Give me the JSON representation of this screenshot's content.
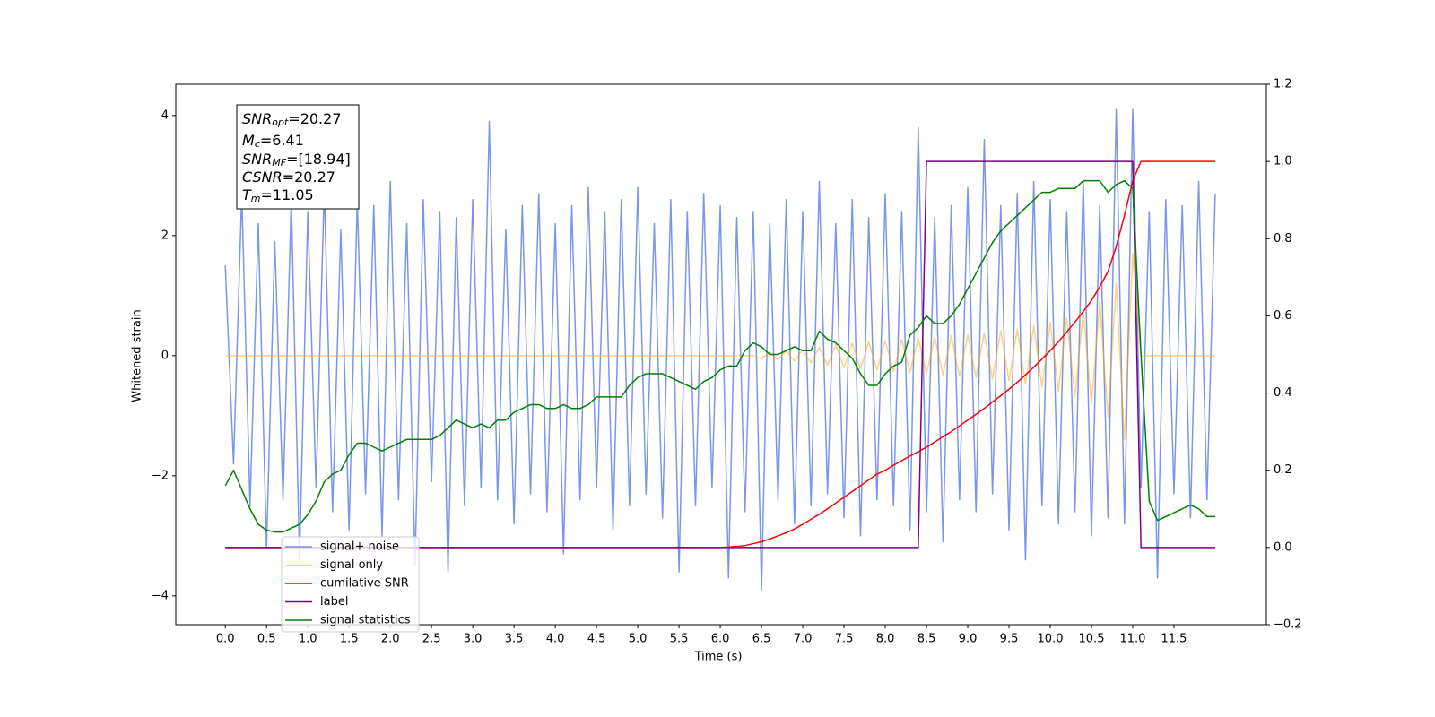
{
  "chart_data": {
    "type": "line",
    "xlabel": "Time (s)",
    "ylabel": "Whitened strain",
    "xlim": [
      -0.6,
      12.62
    ],
    "ylim": [
      -4.48,
      4.52
    ],
    "y2lim": [
      -0.2,
      1.2
    ],
    "xticks": [
      {
        "value": 0,
        "label": "0.0"
      },
      0.5,
      {
        "value": 1,
        "label": "1.0"
      },
      1.5,
      {
        "value": 2,
        "label": "2.0"
      },
      2.5,
      {
        "value": 3,
        "label": "3.0"
      },
      3.5,
      {
        "value": 4,
        "label": "4.0"
      },
      4.5,
      {
        "value": 5,
        "label": "5.0"
      },
      5.5,
      {
        "value": 6,
        "label": "6.0"
      },
      6.5,
      {
        "value": 7,
        "label": "7.0"
      },
      7.5,
      {
        "value": 8,
        "label": "8.0"
      },
      8.5,
      {
        "value": 9,
        "label": "9.0"
      },
      9.5,
      {
        "value": 10,
        "label": "10.0"
      },
      10.5,
      {
        "value": 11,
        "label": "11.0"
      },
      11.5
    ],
    "yticks": [
      {
        "value": -4,
        "label": "−4"
      },
      {
        "value": -2,
        "label": "−2"
      },
      0,
      2,
      4
    ],
    "y2ticks": [
      {
        "value": -0.2,
        "label": "−0.2"
      },
      {
        "value": 0,
        "label": "0.0"
      },
      0.2,
      0.4,
      0.6,
      0.8,
      {
        "value": 1,
        "label": "1.0"
      },
      1.2
    ],
    "legend": "lower left",
    "annotation": [
      {
        "name": "SNR",
        "sub": "opt",
        "text": "=20.27"
      },
      {
        "name": "M",
        "sub": "c",
        "text": "=6.41"
      },
      {
        "name": "SNR",
        "sub": "MF",
        "text": "=[18.94]"
      },
      {
        "name": "CSNR",
        "text": "=20.27"
      },
      {
        "name": "T",
        "sub": "m",
        "text": "=11.05"
      }
    ],
    "x": [
      0,
      0.1,
      0.2,
      0.3,
      0.4,
      0.5,
      0.6,
      0.7,
      0.8,
      0.9,
      1,
      1.1,
      1.2,
      1.3,
      1.4,
      1.5,
      1.6,
      1.7,
      1.8,
      1.9,
      2,
      2.1,
      2.2,
      2.3,
      2.4,
      2.5,
      2.6,
      2.7,
      2.8,
      2.9,
      3,
      3.1,
      3.2,
      3.3,
      3.4,
      3.5,
      3.6,
      3.7,
      3.8,
      3.9,
      4,
      4.1,
      4.2,
      4.3,
      4.4,
      4.5,
      4.6,
      4.7,
      4.8,
      4.9,
      5,
      5.1,
      5.2,
      5.3,
      5.4,
      5.5,
      5.6,
      5.7,
      5.8,
      5.9,
      6,
      6.1,
      6.2,
      6.3,
      6.4,
      6.5,
      6.6,
      6.7,
      6.8,
      6.9,
      7,
      7.1,
      7.2,
      7.3,
      7.4,
      7.5,
      7.6,
      7.7,
      7.8,
      7.9,
      8,
      8.1,
      8.2,
      8.3,
      8.4,
      8.5,
      8.6,
      8.7,
      8.8,
      8.9,
      9,
      9.1,
      9.2,
      9.3,
      9.4,
      9.5,
      9.6,
      9.7,
      9.8,
      9.9,
      10,
      10.1,
      10.2,
      10.3,
      10.4,
      10.5,
      10.6,
      10.7,
      10.8,
      10.9,
      11,
      11.1,
      11.2,
      11.3,
      11.4,
      11.5,
      11.6,
      11.7,
      11.8,
      11.9,
      12
    ],
    "series": [
      {
        "name": "signal+ noise",
        "color": "#4169e1",
        "alpha": 0.7,
        "width": 1.5,
        "axis": "y",
        "values": [
          1.5,
          -1.8,
          2.7,
          -2.5,
          2.2,
          -3.2,
          1.9,
          -2.4,
          2.6,
          -3.4,
          2.4,
          -2.2,
          2.8,
          -2.6,
          2.1,
          -2.9,
          2.6,
          -2.3,
          2.5,
          -3.0,
          2.9,
          -2.4,
          2.2,
          -3.5,
          2.6,
          -2.1,
          2.4,
          -3.6,
          2.3,
          -2.5,
          2.6,
          -2.2,
          3.9,
          -2.4,
          2.1,
          -2.8,
          2.5,
          -2.3,
          2.7,
          -2.6,
          2.2,
          -3.3,
          2.5,
          -2.4,
          2.8,
          -2.2,
          2.4,
          -2.9,
          2.6,
          -2.5,
          2.8,
          -2.3,
          2.2,
          -2.7,
          2.6,
          -3.6,
          2.4,
          -2.5,
          2.7,
          -2.2,
          2.5,
          -3.7,
          2.3,
          -2.6,
          2.4,
          -3.9,
          2.2,
          -2.4,
          2.6,
          -2.8,
          2.4,
          -2.5,
          2.9,
          -2.3,
          2.2,
          -2.7,
          2.6,
          -3.0,
          2.3,
          -2.4,
          2.7,
          -2.5,
          2.4,
          -2.9,
          3.8,
          -2.6,
          2.3,
          -3.1,
          2.5,
          -2.4,
          2.8,
          -2.6,
          3.6,
          -2.3,
          2.5,
          -2.9,
          2.7,
          -3.4,
          2.9,
          -2.5,
          2.6,
          -2.8,
          2.4,
          -2.6,
          2.9,
          -3.0,
          2.5,
          -2.7,
          4.1,
          -2.8,
          4.1,
          -2.2,
          2.4,
          -3.7,
          2.6,
          -2.3,
          2.5,
          -2.7,
          2.9,
          -2.4,
          2.7
        ]
      },
      {
        "name": "signal only",
        "color": "#ffa500",
        "alpha": 0.5,
        "width": 1.5,
        "axis": "y",
        "values": [
          0,
          0,
          0,
          0,
          0,
          0,
          0,
          0,
          0,
          0,
          0,
          0,
          0,
          0,
          0,
          0,
          0,
          0,
          0,
          0,
          0,
          0,
          0,
          0,
          0,
          0,
          0,
          0,
          0,
          0,
          0,
          0,
          0,
          0,
          0,
          0,
          0,
          0,
          0,
          0,
          0,
          0,
          0,
          0,
          0,
          0,
          0,
          0,
          0,
          0,
          0,
          0,
          0,
          0,
          0,
          0,
          0,
          0,
          0,
          0,
          0,
          0,
          0,
          0,
          0,
          -0.05,
          0.06,
          -0.07,
          0.08,
          -0.09,
          0.1,
          -0.12,
          0.14,
          -0.16,
          0.18,
          -0.2,
          0.21,
          -0.22,
          0.23,
          -0.24,
          0.25,
          -0.26,
          0.27,
          -0.28,
          0.29,
          -0.3,
          0.31,
          -0.32,
          0.33,
          -0.34,
          0.35,
          -0.36,
          0.38,
          -0.39,
          0.41,
          -0.42,
          0.44,
          -0.47,
          0.5,
          -0.52,
          0.55,
          -0.59,
          0.63,
          -0.68,
          0.74,
          -0.8,
          0.9,
          -1.02,
          1.2,
          -1.4,
          1.7,
          0,
          0,
          0,
          0,
          0,
          0,
          0,
          0,
          0,
          0
        ]
      },
      {
        "name": "cumilative SNR",
        "color": "#ff0000",
        "alpha": 1,
        "width": 1.5,
        "axis": "y2",
        "values": [
          0,
          0,
          0,
          0,
          0,
          0,
          0,
          0,
          0,
          0,
          0,
          0,
          0,
          0,
          0,
          0,
          0,
          0,
          0,
          0,
          0,
          0,
          0,
          0,
          0,
          0,
          0,
          0,
          0,
          0,
          0,
          0,
          0,
          0,
          0,
          0,
          0,
          0,
          0,
          0,
          0,
          0,
          0,
          0,
          0,
          0,
          0,
          0,
          0,
          0,
          0,
          0,
          0,
          0,
          0,
          0,
          0,
          0,
          0,
          0,
          0,
          0.001,
          0.003,
          0.005,
          0.01,
          0.015,
          0.022,
          0.03,
          0.038,
          0.048,
          0.06,
          0.073,
          0.086,
          0.1,
          0.115,
          0.13,
          0.145,
          0.16,
          0.175,
          0.19,
          0.2,
          0.213,
          0.225,
          0.237,
          0.248,
          0.26,
          0.273,
          0.287,
          0.3,
          0.315,
          0.33,
          0.345,
          0.36,
          0.377,
          0.393,
          0.41,
          0.428,
          0.447,
          0.467,
          0.488,
          0.51,
          0.533,
          0.558,
          0.584,
          0.611,
          0.64,
          0.675,
          0.715,
          0.78,
          0.86,
          0.95,
          1,
          1,
          1,
          1,
          1,
          1,
          1,
          1,
          1,
          1
        ]
      },
      {
        "name": "label",
        "color": "#800080",
        "alpha": 1,
        "width": 1.5,
        "axis": "y2",
        "values": [
          0,
          0,
          0,
          0,
          0,
          0,
          0,
          0,
          0,
          0,
          0,
          0,
          0,
          0,
          0,
          0,
          0,
          0,
          0,
          0,
          0,
          0,
          0,
          0,
          0,
          0,
          0,
          0,
          0,
          0,
          0,
          0,
          0,
          0,
          0,
          0,
          0,
          0,
          0,
          0,
          0,
          0,
          0,
          0,
          0,
          0,
          0,
          0,
          0,
          0,
          0,
          0,
          0,
          0,
          0,
          0,
          0,
          0,
          0,
          0,
          0,
          0,
          0,
          0,
          0,
          0,
          0,
          0,
          0,
          0,
          0,
          0,
          0,
          0,
          0,
          0,
          0,
          0,
          0,
          0,
          0,
          0,
          0,
          0,
          0,
          1,
          1,
          1,
          1,
          1,
          1,
          1,
          1,
          1,
          1,
          1,
          1,
          1,
          1,
          1,
          1,
          1,
          1,
          1,
          1,
          1,
          1,
          1,
          1,
          1,
          1,
          0,
          0,
          0,
          0,
          0,
          0,
          0,
          0,
          0,
          0
        ]
      },
      {
        "name": "signal statistics",
        "color": "#008000",
        "alpha": 1,
        "width": 1.5,
        "axis": "y2",
        "values": [
          0.16,
          0.2,
          0.15,
          0.1,
          0.06,
          0.045,
          0.04,
          0.04,
          0.05,
          0.06,
          0.085,
          0.12,
          0.17,
          0.19,
          0.2,
          0.24,
          0.27,
          0.27,
          0.26,
          0.25,
          0.26,
          0.27,
          0.28,
          0.28,
          0.28,
          0.28,
          0.29,
          0.31,
          0.33,
          0.32,
          0.31,
          0.32,
          0.31,
          0.33,
          0.33,
          0.35,
          0.36,
          0.37,
          0.37,
          0.36,
          0.36,
          0.37,
          0.36,
          0.36,
          0.37,
          0.39,
          0.39,
          0.39,
          0.39,
          0.42,
          0.44,
          0.45,
          0.45,
          0.45,
          0.44,
          0.43,
          0.42,
          0.41,
          0.43,
          0.44,
          0.46,
          0.47,
          0.47,
          0.51,
          0.53,
          0.52,
          0.5,
          0.5,
          0.51,
          0.52,
          0.51,
          0.51,
          0.56,
          0.54,
          0.53,
          0.51,
          0.49,
          0.45,
          0.42,
          0.42,
          0.45,
          0.47,
          0.48,
          0.55,
          0.57,
          0.6,
          0.58,
          0.58,
          0.6,
          0.63,
          0.67,
          0.71,
          0.75,
          0.79,
          0.82,
          0.84,
          0.86,
          0.88,
          0.9,
          0.92,
          0.92,
          0.93,
          0.93,
          0.93,
          0.95,
          0.95,
          0.95,
          0.92,
          0.94,
          0.95,
          0.93,
          0.5,
          0.12,
          0.07,
          0.08,
          0.09,
          0.1,
          0.11,
          0.1,
          0.08,
          0.08
        ]
      }
    ]
  }
}
